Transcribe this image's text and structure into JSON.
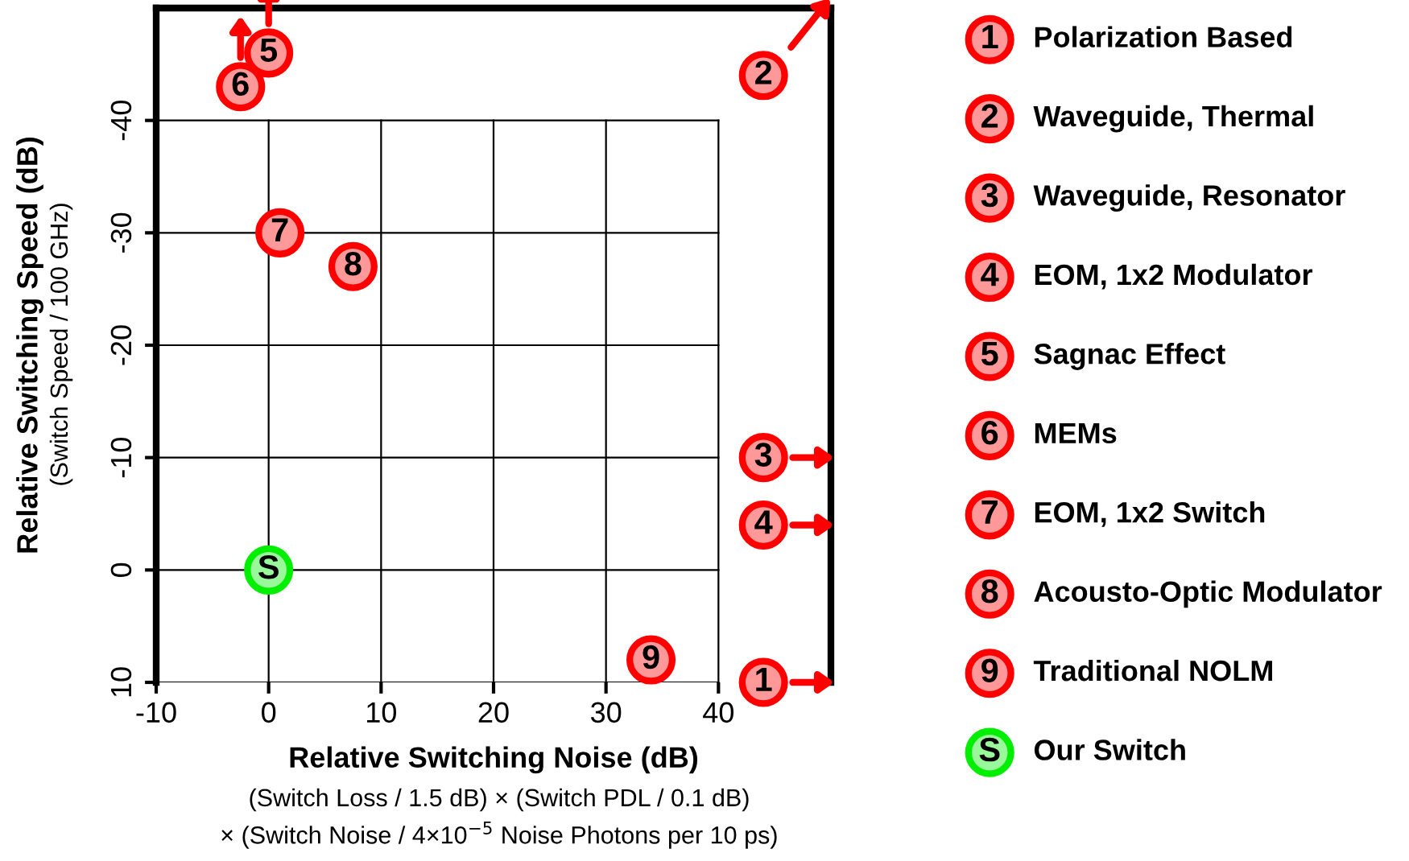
{
  "chart_data": {
    "type": "scatter",
    "xlabel": "Relative Switching Noise (dB)",
    "ylabel": "Relative Switching Speed (dB)",
    "annotations": [
      "(Switch Speed / 100 GHz)",
      "(Switch Loss / 1.5 dB) × (Switch PDL / 0.1 dB)",
      "× (Switch Noise / 4×10$^{−5}$ Noise Photons per 10 ps)",
      {
        "text": "1",
        "x": 44,
        "y": 10
      },
      {
        "text": "2",
        "x": 44,
        "y": -44
      },
      {
        "text": "3",
        "x": 44,
        "y": -10
      },
      {
        "text": "4",
        "x": 44,
        "y": -4
      },
      {
        "text": "5",
        "x": 0,
        "y": -46
      },
      {
        "text": "6",
        "x": -2.5,
        "y": -43
      },
      {
        "text": "7",
        "x": 1,
        "y": -30
      },
      {
        "text": "8",
        "x": 7.5,
        "y": -27
      },
      {
        "text": "9",
        "x": 34,
        "y": 8
      },
      {
        "text": "S",
        "x": 0,
        "y": 0
      }
    ],
    "xlim": [
      -10,
      50
    ],
    "xticks": [
      -10,
      0,
      10,
      20,
      30,
      40
    ],
    "ylim": [
      10,
      -50
    ],
    "yticks": [
      10,
      0,
      -10,
      -20,
      -30,
      -40
    ],
    "grid": true,
    "legend": "right",
    "marker": "circle",
    "series": [
      {
        "name": "Polarization Based",
        "color": "#ff0000",
        "x": [
          44
        ],
        "values": [
          10
        ]
      },
      {
        "name": "Waveguide, Thermal",
        "color": "#ff0000",
        "x": [
          44
        ],
        "values": [
          -44
        ]
      },
      {
        "name": "Waveguide, Resonator",
        "color": "#ff0000",
        "x": [
          44
        ],
        "values": [
          -10
        ]
      },
      {
        "name": "EOM, 1x2 Modulator",
        "color": "#ff0000",
        "x": [
          44
        ],
        "values": [
          -4
        ]
      },
      {
        "name": "Sagnac Effect",
        "color": "#ff0000",
        "x": [
          0
        ],
        "values": [
          -46
        ]
      },
      {
        "name": "MEMs",
        "color": "#ff0000",
        "x": [
          -2.5
        ],
        "values": [
          -43
        ]
      },
      {
        "name": "EOM, 1x2 Switch",
        "color": "#ff0000",
        "x": [
          1
        ],
        "values": [
          -30
        ]
      },
      {
        "name": "Acousto-Optic Modulator",
        "color": "#ff0000",
        "x": [
          7.5
        ],
        "values": [
          -27
        ]
      },
      {
        "name": "Traditional NOLM",
        "color": "#ff0000",
        "x": [
          34
        ],
        "values": [
          8
        ]
      },
      {
        "name": "Our Switch",
        "color": "#00ee00",
        "x": [
          0
        ],
        "values": [
          0
        ]
      }
    ]
  }
}
